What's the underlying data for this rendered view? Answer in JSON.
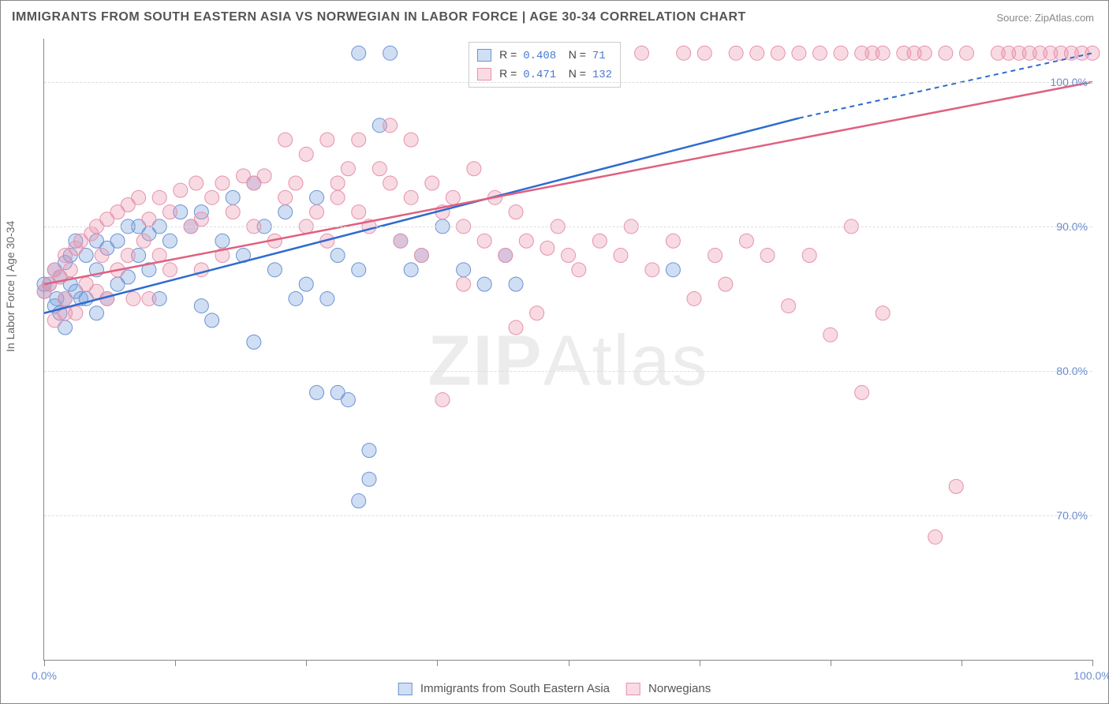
{
  "title": "IMMIGRANTS FROM SOUTH EASTERN ASIA VS NORWEGIAN IN LABOR FORCE | AGE 30-34 CORRELATION CHART",
  "source": "Source: ZipAtlas.com",
  "y_axis_label": "In Labor Force | Age 30-34",
  "watermark_bold": "ZIP",
  "watermark_rest": "Atlas",
  "chart": {
    "type": "scatter",
    "xlim": [
      0,
      100
    ],
    "ylim": [
      60,
      103
    ],
    "x_ticks": [
      0,
      12.5,
      25,
      37.5,
      50,
      62.5,
      75,
      87.5,
      100
    ],
    "x_tick_labels": {
      "0": "0.0%",
      "100": "100.0%"
    },
    "y_gridlines": [
      70,
      80,
      90,
      100
    ],
    "y_tick_labels": {
      "70": "70.0%",
      "80": "80.0%",
      "90": "90.0%",
      "100": "100.0%"
    },
    "background_color": "#ffffff",
    "grid_color": "#dddddd",
    "series": [
      {
        "name": "Immigrants from South Eastern Asia",
        "color_fill": "rgba(120,160,220,0.35)",
        "color_stroke": "#6a93d4",
        "legend_swatch_fill": "#cfe0f5",
        "legend_swatch_border": "#6a93d4",
        "r": 0.408,
        "n": 71,
        "trend": {
          "x1": 0,
          "y1": 84,
          "x2": 72,
          "y2": 97.5
        },
        "trend_ext": {
          "x1": 72,
          "y1": 97.5,
          "x2": 100,
          "y2": 102
        },
        "trend_color": "#2e6bd0",
        "points": [
          [
            0,
            86
          ],
          [
            0,
            85.5
          ],
          [
            0.5,
            86
          ],
          [
            1,
            87
          ],
          [
            1,
            84.5
          ],
          [
            1.2,
            85
          ],
          [
            1.5,
            86.5
          ],
          [
            1.5,
            84
          ],
          [
            2,
            87.5
          ],
          [
            2,
            85
          ],
          [
            2,
            83
          ],
          [
            2.5,
            88
          ],
          [
            2.5,
            86
          ],
          [
            3,
            89
          ],
          [
            3,
            85.5
          ],
          [
            3.5,
            85
          ],
          [
            4,
            88
          ],
          [
            4,
            85
          ],
          [
            5,
            87
          ],
          [
            5,
            84
          ],
          [
            5,
            89
          ],
          [
            6,
            88.5
          ],
          [
            6,
            85
          ],
          [
            7,
            89
          ],
          [
            7,
            86
          ],
          [
            8,
            90
          ],
          [
            8,
            86.5
          ],
          [
            9,
            88
          ],
          [
            9,
            90
          ],
          [
            10,
            89.5
          ],
          [
            10,
            87
          ],
          [
            11,
            90
          ],
          [
            11,
            85
          ],
          [
            12,
            89
          ],
          [
            13,
            91
          ],
          [
            14,
            90
          ],
          [
            15,
            91
          ],
          [
            15,
            84.5
          ],
          [
            16,
            83.5
          ],
          [
            17,
            89
          ],
          [
            18,
            92
          ],
          [
            19,
            88
          ],
          [
            20,
            93
          ],
          [
            20,
            82
          ],
          [
            21,
            90
          ],
          [
            22,
            87
          ],
          [
            23,
            91
          ],
          [
            24,
            85
          ],
          [
            25,
            86
          ],
          [
            26,
            92
          ],
          [
            26,
            78.5
          ],
          [
            27,
            85
          ],
          [
            28,
            88
          ],
          [
            28,
            78.5
          ],
          [
            29,
            78
          ],
          [
            30,
            102
          ],
          [
            30,
            87
          ],
          [
            30,
            71
          ],
          [
            31,
            74.5
          ],
          [
            31,
            72.5
          ],
          [
            32,
            97
          ],
          [
            33,
            102
          ],
          [
            34,
            89
          ],
          [
            35,
            87
          ],
          [
            36,
            88
          ],
          [
            38,
            90
          ],
          [
            40,
            87
          ],
          [
            42,
            86
          ],
          [
            44,
            88
          ],
          [
            45,
            86
          ],
          [
            47,
            102
          ],
          [
            60,
            87
          ]
        ]
      },
      {
        "name": "Norwegians",
        "color_fill": "rgba(235,150,175,0.35)",
        "color_stroke": "#e592ac",
        "legend_swatch_fill": "#fadbe4",
        "legend_swatch_border": "#e592ac",
        "r": 0.471,
        "n": 132,
        "trend": {
          "x1": 0,
          "y1": 86,
          "x2": 100,
          "y2": 100
        },
        "trend_color": "#e0607f",
        "points": [
          [
            0,
            85.5
          ],
          [
            0.5,
            86
          ],
          [
            1,
            87
          ],
          [
            1,
            83.5
          ],
          [
            1.5,
            86.5
          ],
          [
            2,
            88
          ],
          [
            2,
            85
          ],
          [
            2,
            84
          ],
          [
            2.5,
            87
          ],
          [
            3,
            88.5
          ],
          [
            3,
            84
          ],
          [
            3.5,
            89
          ],
          [
            4,
            86
          ],
          [
            4.5,
            89.5
          ],
          [
            5,
            90
          ],
          [
            5,
            85.5
          ],
          [
            5.5,
            88
          ],
          [
            6,
            90.5
          ],
          [
            6,
            85
          ],
          [
            7,
            91
          ],
          [
            7,
            87
          ],
          [
            8,
            91.5
          ],
          [
            8,
            88
          ],
          [
            8.5,
            85
          ],
          [
            9,
            92
          ],
          [
            9.5,
            89
          ],
          [
            10,
            90.5
          ],
          [
            10,
            85
          ],
          [
            11,
            92
          ],
          [
            11,
            88
          ],
          [
            12,
            91
          ],
          [
            12,
            87
          ],
          [
            13,
            92.5
          ],
          [
            14,
            90
          ],
          [
            14.5,
            93
          ],
          [
            15,
            90.5
          ],
          [
            15,
            87
          ],
          [
            16,
            92
          ],
          [
            17,
            93
          ],
          [
            17,
            88
          ],
          [
            18,
            91
          ],
          [
            19,
            93.5
          ],
          [
            20,
            90
          ],
          [
            20,
            93
          ],
          [
            21,
            93.5
          ],
          [
            22,
            89
          ],
          [
            23,
            96
          ],
          [
            23,
            92
          ],
          [
            24,
            93
          ],
          [
            25,
            90
          ],
          [
            25,
            95
          ],
          [
            26,
            91
          ],
          [
            27,
            96
          ],
          [
            27,
            89
          ],
          [
            28,
            93
          ],
          [
            28,
            92
          ],
          [
            29,
            94
          ],
          [
            30,
            91
          ],
          [
            30,
            96
          ],
          [
            31,
            90
          ],
          [
            32,
            94
          ],
          [
            33,
            93
          ],
          [
            33,
            97
          ],
          [
            34,
            89
          ],
          [
            35,
            92
          ],
          [
            35,
            96
          ],
          [
            36,
            88
          ],
          [
            37,
            93
          ],
          [
            38,
            91
          ],
          [
            38,
            78
          ],
          [
            39,
            92
          ],
          [
            40,
            90
          ],
          [
            40,
            86
          ],
          [
            41,
            94
          ],
          [
            42,
            89
          ],
          [
            43,
            92
          ],
          [
            44,
            88
          ],
          [
            45,
            91
          ],
          [
            45,
            83
          ],
          [
            46,
            89
          ],
          [
            47,
            84
          ],
          [
            48,
            88.5
          ],
          [
            49,
            90
          ],
          [
            50,
            88
          ],
          [
            50,
            102
          ],
          [
            51,
            87
          ],
          [
            52,
            102
          ],
          [
            53,
            89
          ],
          [
            55,
            88
          ],
          [
            56,
            90
          ],
          [
            57,
            102
          ],
          [
            58,
            87
          ],
          [
            60,
            89
          ],
          [
            61,
            102
          ],
          [
            62,
            85
          ],
          [
            63,
            102
          ],
          [
            64,
            88
          ],
          [
            65,
            86
          ],
          [
            66,
            102
          ],
          [
            67,
            89
          ],
          [
            68,
            102
          ],
          [
            69,
            88
          ],
          [
            70,
            102
          ],
          [
            71,
            84.5
          ],
          [
            72,
            102
          ],
          [
            73,
            88
          ],
          [
            74,
            102
          ],
          [
            75,
            82.5
          ],
          [
            76,
            102
          ],
          [
            77,
            90
          ],
          [
            78,
            78.5
          ],
          [
            79,
            102
          ],
          [
            80,
            102
          ],
          [
            82,
            102
          ],
          [
            83,
            102
          ],
          [
            84,
            102
          ],
          [
            85,
            68.5
          ],
          [
            86,
            102
          ],
          [
            87,
            72
          ],
          [
            88,
            102
          ],
          [
            91,
            102
          ],
          [
            92,
            102
          ],
          [
            93,
            102
          ],
          [
            94,
            102
          ],
          [
            95,
            102
          ],
          [
            96,
            102
          ],
          [
            97,
            102
          ],
          [
            98,
            102
          ],
          [
            99,
            102
          ],
          [
            100,
            102
          ],
          [
            78,
            102
          ],
          [
            80,
            84
          ]
        ]
      }
    ]
  },
  "legend_top": {
    "r_label": "R =",
    "n_label": "N ="
  },
  "bottom_legend": {
    "series1": "Immigrants from South Eastern Asia",
    "series2": "Norwegians"
  }
}
